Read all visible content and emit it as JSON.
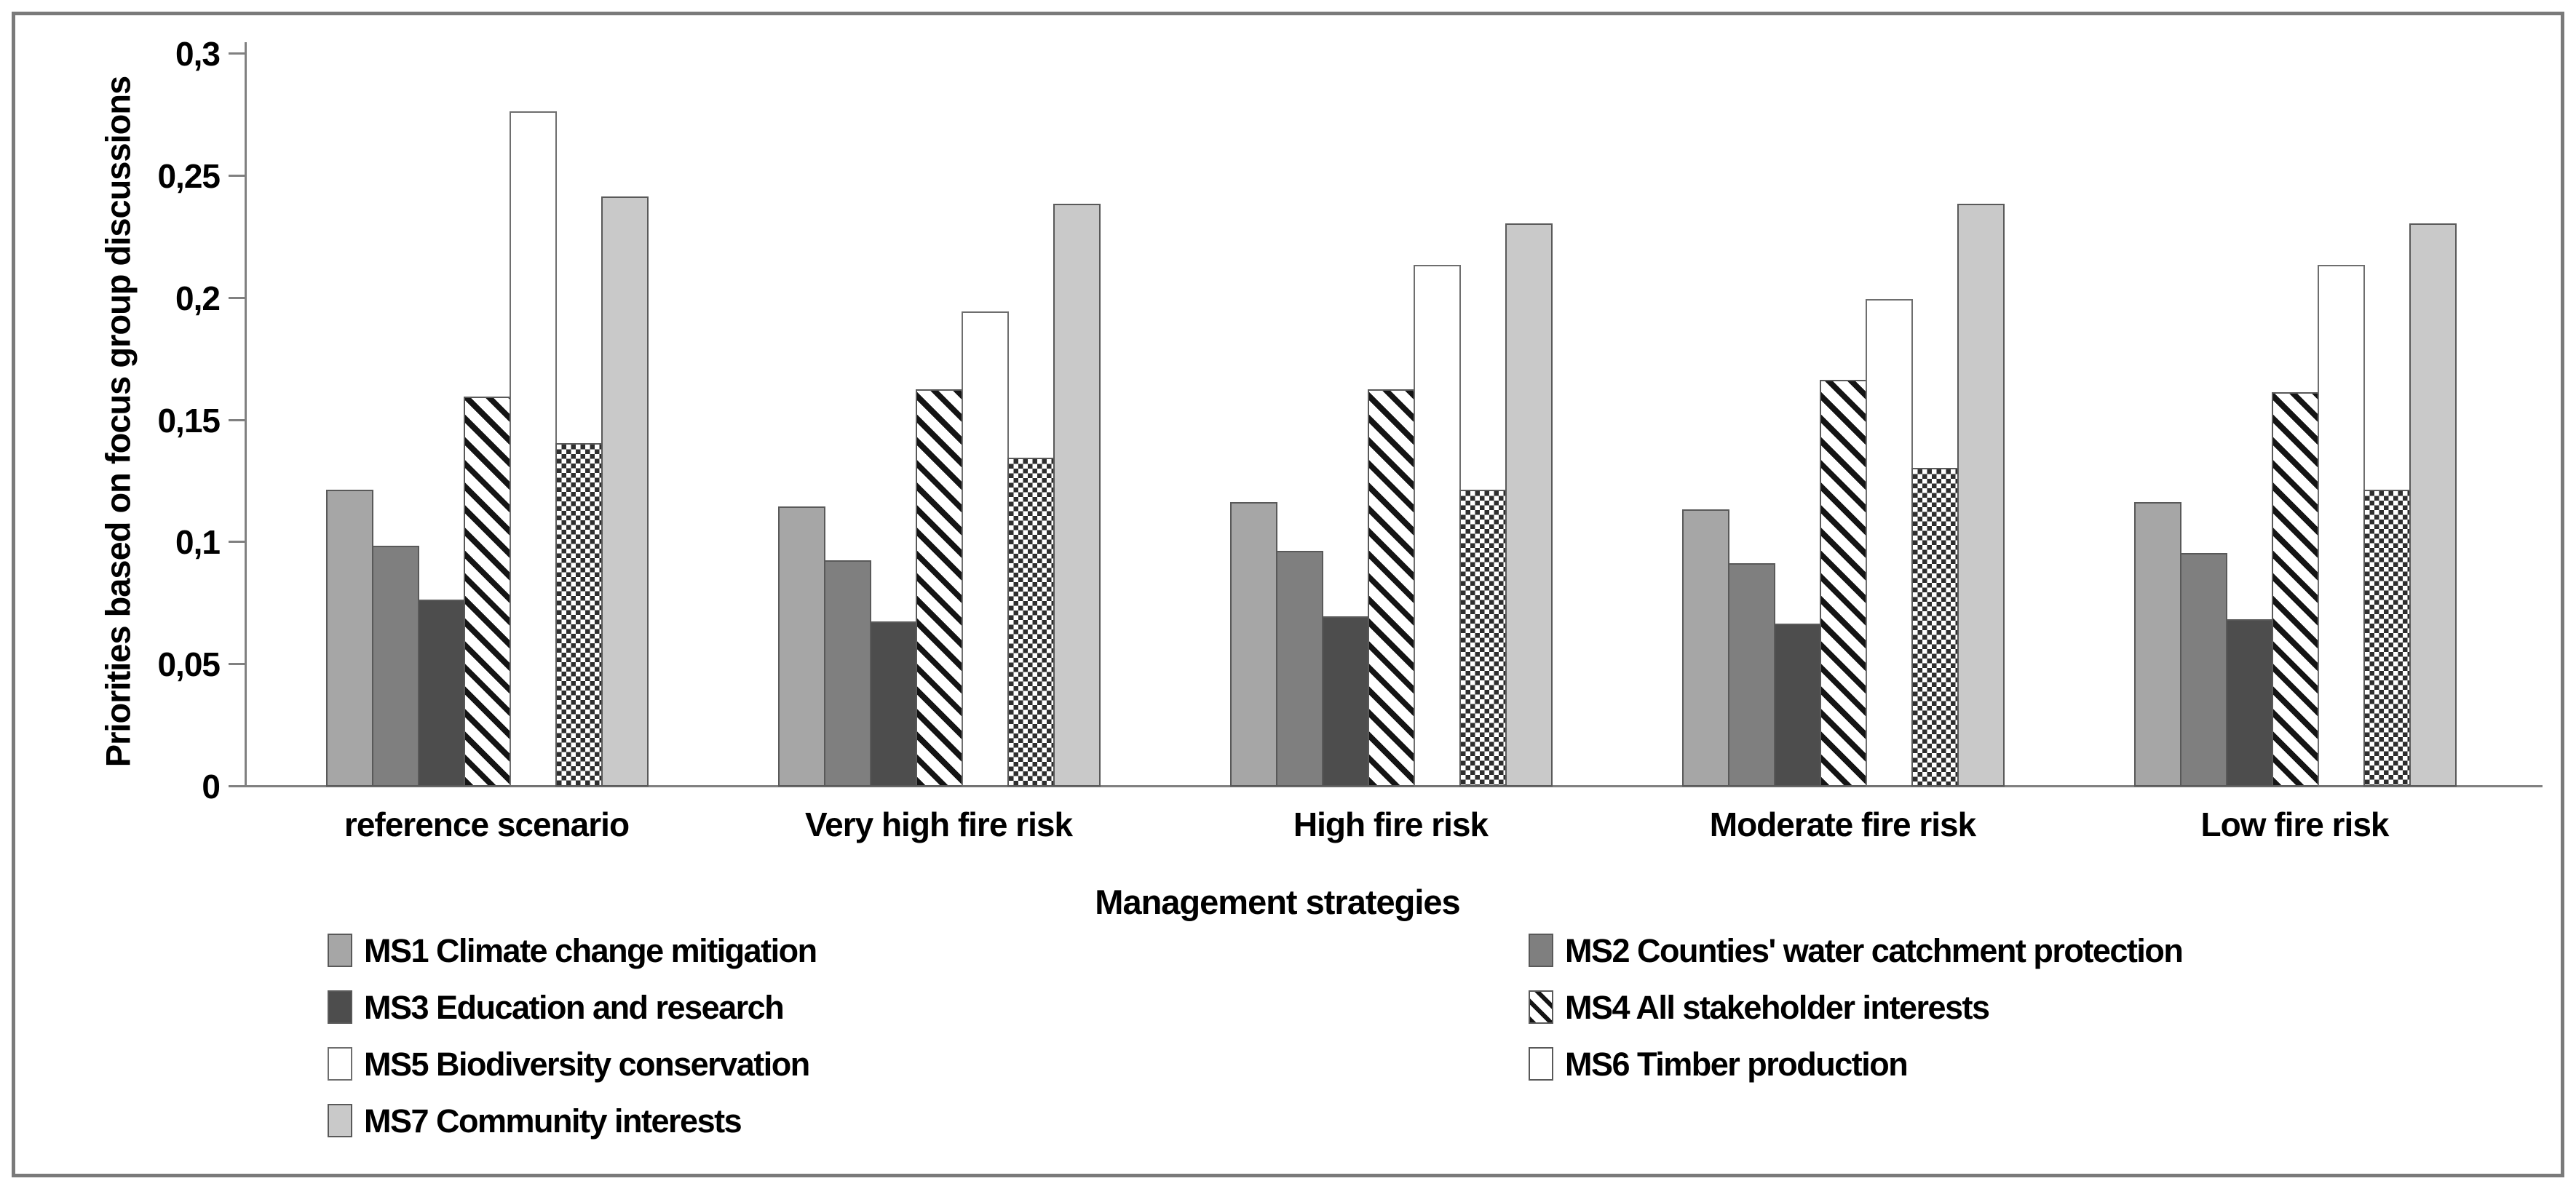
{
  "figure": {
    "y_axis_label": "Priorities based on focus group discussions",
    "x_axis_label": "Management strategies"
  },
  "chart_data": {
    "type": "bar",
    "title": "",
    "ylabel": "Priorities based on focus group discussions",
    "xlabel": "Management strategies",
    "ylim": [
      0,
      0.3
    ],
    "ytick_labels": [
      "0",
      "0,05",
      "0,1",
      "0,15",
      "0,2",
      "0,25",
      "0,3"
    ],
    "decimal_separator": ",",
    "grid": false,
    "legend_position": "bottom, two columns",
    "categories": [
      "reference scenario",
      "Very high fire risk",
      "High fire risk",
      "Moderate fire risk",
      "Low fire risk"
    ],
    "series": [
      {
        "name": "MS1 Climate change mitigation",
        "pattern": "solid",
        "fill": "#a6a6a6",
        "border": "#595959",
        "values": [
          0.121,
          0.114,
          0.116,
          0.113,
          0.116
        ]
      },
      {
        "name": "MS2 Counties' water catchment protection",
        "pattern": "solid",
        "fill": "#7f7f7f",
        "border": "#595959",
        "values": [
          0.098,
          0.092,
          0.096,
          0.091,
          0.095
        ]
      },
      {
        "name": "MS3 Education and research",
        "pattern": "solid",
        "fill": "#4d4d4d",
        "border": "#595959",
        "values": [
          0.076,
          0.067,
          0.069,
          0.066,
          0.068
        ]
      },
      {
        "name": "MS4 All stakeholder interests",
        "pattern": "diagonal-stripes",
        "fill": "#ffffff",
        "border": "#595959",
        "values": [
          0.159,
          0.162,
          0.162,
          0.166,
          0.161
        ]
      },
      {
        "name": "MS5 Biodiversity conservation",
        "pattern": "solid",
        "fill": "#ffffff",
        "border": "#6e6e6e",
        "values": [
          0.276,
          0.194,
          0.213,
          0.199,
          0.213
        ]
      },
      {
        "name": "MS6 Timber production",
        "pattern": "checkerboard",
        "fill": "#ffffff",
        "border": "#595959",
        "values": [
          0.14,
          0.134,
          0.121,
          0.13,
          0.121
        ]
      },
      {
        "name": "MS7 Community interests",
        "pattern": "solid",
        "fill": "#c9c9c9",
        "border": "#595959",
        "values": [
          0.241,
          0.238,
          0.23,
          0.238,
          0.23
        ]
      }
    ],
    "legend_columns": [
      [
        0,
        2,
        4,
        6
      ],
      [
        1,
        3,
        5
      ]
    ]
  },
  "colors": {
    "axis": "#808080",
    "bar_border": "#595959",
    "frame": "#7a7a7a",
    "text": "#000000",
    "background": "#ffffff"
  }
}
